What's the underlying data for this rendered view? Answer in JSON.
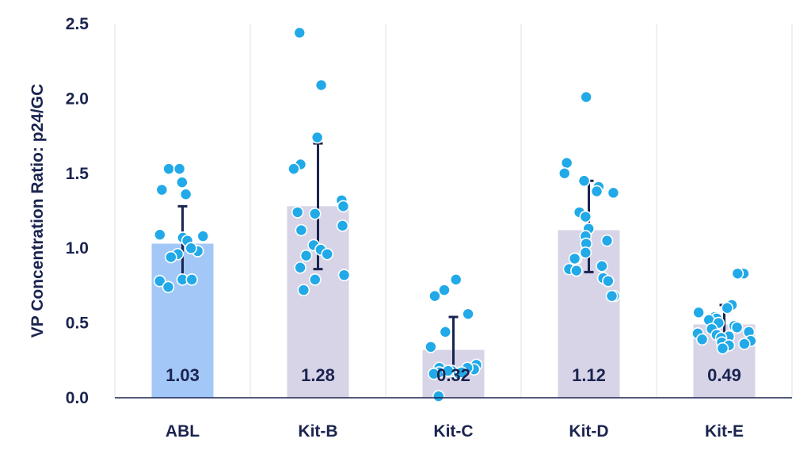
{
  "chart_data": {
    "type": "bar",
    "title": "",
    "xlabel": "",
    "ylabel": "VP Concentration Ratio: p24/GC",
    "ylim": [
      0,
      2.5
    ],
    "yticks": [
      "0.0",
      "0.5",
      "1.0",
      "1.5",
      "2.0",
      "2.5"
    ],
    "grid": "vertical",
    "categories": [
      "ABL",
      "Kit-B",
      "Kit-C",
      "Kit-D",
      "Kit-E"
    ],
    "values": [
      1.03,
      1.28,
      0.32,
      1.12,
      0.49
    ],
    "value_labels": [
      "1.03",
      "1.28",
      "0.32",
      "1.12",
      "0.49"
    ],
    "error_high": [
      1.28,
      1.7,
      0.54,
      1.45,
      0.62
    ],
    "error_low": [
      0.78,
      0.86,
      0.18,
      0.84,
      0.36
    ],
    "colors": {
      "highlight_bar": "#a3c8f7",
      "bar": "#d6d4e6",
      "point": "#21a9e8",
      "point_stroke": "#ffffff",
      "error_bar": "#1b2450",
      "text": "#1b2450",
      "grid": "#e2e2ea"
    },
    "points": [
      [
        1.44,
        1.36,
        1.39,
        1.53,
        1.53,
        1.07,
        1.09,
        1.08,
        1.05,
        0.96,
        0.94,
        0.98,
        1.0,
        0.78,
        0.79,
        0.74,
        0.79
      ],
      [
        2.44,
        2.09,
        1.74,
        1.56,
        1.53,
        1.32,
        1.28,
        1.24,
        1.23,
        1.15,
        1.12,
        1.02,
        0.99,
        0.96,
        0.95,
        0.87,
        0.82,
        0.79,
        0.72
      ],
      [
        0.79,
        0.72,
        0.68,
        0.56,
        0.45,
        0.44,
        0.34,
        0.22,
        0.2,
        0.19,
        0.18,
        0.17,
        0.16,
        0.18,
        0.2,
        0.17,
        0.16,
        0.01
      ],
      [
        2.01,
        1.57,
        1.5,
        1.45,
        1.41,
        1.38,
        1.37,
        1.24,
        1.21,
        1.13,
        1.08,
        1.05,
        1.03,
        0.97,
        0.93,
        0.93,
        0.88,
        0.86,
        0.85,
        0.8,
        0.78,
        0.68,
        0.68
      ],
      [
        0.83,
        0.83,
        0.62,
        0.6,
        0.57,
        0.54,
        0.53,
        0.52,
        0.5,
        0.48,
        0.47,
        0.46,
        0.44,
        0.43,
        0.42,
        0.41,
        0.4,
        0.39,
        0.38,
        0.37,
        0.36,
        0.35,
        0.33
      ]
    ]
  }
}
